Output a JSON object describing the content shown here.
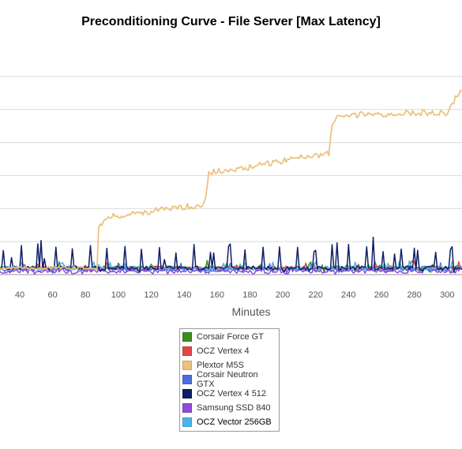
{
  "chart_data": {
    "type": "line",
    "title": "Preconditioning Curve - File Server [Max Latency]",
    "xlabel": "Minutes",
    "ylabel": "",
    "x_ticks": [
      40,
      60,
      80,
      100,
      120,
      140,
      160,
      180,
      200,
      220,
      240,
      260,
      280,
      300
    ],
    "xlim": [
      28,
      309
    ],
    "y_grid_values": [
      1,
      2,
      3,
      4,
      5,
      6
    ],
    "ylim": [
      0,
      7
    ],
    "grid": "horizontal",
    "legend_position": "bottom",
    "series": [
      {
        "name": "Corsair Force GT",
        "color": "#3c8d1f",
        "baseline": 0.2,
        "spike_every": 0,
        "spike_height": 0.12
      },
      {
        "name": "OCZ Vertex 4",
        "color": "#e04848",
        "baseline": 0.2,
        "spike_every": 0,
        "spike_height": 0.12
      },
      {
        "name": "Plextor M5S",
        "color": "#ecc27f",
        "steps": [
          {
            "x": [
              28,
              87
            ],
            "y": 0.2
          },
          {
            "x": [
              88,
              153
            ],
            "y": 1.75
          },
          {
            "x": [
              154,
              229
            ],
            "y": 3.1
          },
          {
            "x": [
              230,
              309
            ],
            "y": 4.8
          }
        ],
        "points": [
          [
            28,
            0.2
          ],
          [
            87,
            0.2
          ],
          [
            88,
            1.5
          ],
          [
            95,
            1.75
          ],
          [
            110,
            1.85
          ],
          [
            125,
            1.95
          ],
          [
            140,
            2.05
          ],
          [
            151,
            2.1
          ],
          [
            153,
            2.3
          ],
          [
            155,
            3.1
          ],
          [
            170,
            3.15
          ],
          [
            185,
            3.3
          ],
          [
            200,
            3.45
          ],
          [
            215,
            3.6
          ],
          [
            228,
            3.65
          ],
          [
            230,
            4.6
          ],
          [
            235,
            4.8
          ],
          [
            250,
            4.85
          ],
          [
            265,
            4.85
          ],
          [
            280,
            4.9
          ],
          [
            300,
            4.9
          ],
          [
            308,
            5.6
          ]
        ]
      },
      {
        "name": "Corsair Neutron GTX",
        "color": "#4a6ee0",
        "baseline": 0.15,
        "spike_every": 0,
        "spike_height": 0.1
      },
      {
        "name": "OCZ Vertex 4 512",
        "color": "#0f1f66",
        "baseline": 0.2,
        "spike_every": 10.5,
        "spike_height": 0.6
      },
      {
        "name": "Samsung SSD 840",
        "color": "#8f4bd9",
        "baseline": 0.1,
        "spike_every": 0,
        "spike_height": 0.1
      },
      {
        "name": "OCZ Vector 256GB",
        "color": "#4db4ea",
        "baseline": 0.2,
        "spike_every": 0,
        "spike_height": 0.15,
        "selected": true
      }
    ]
  }
}
